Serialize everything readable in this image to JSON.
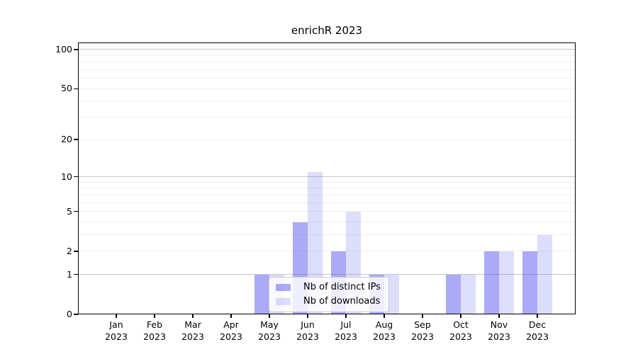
{
  "chart_data": {
    "type": "bar",
    "title": "enrichR 2023",
    "categories": [
      "Jan 2023",
      "Feb 2023",
      "Mar 2023",
      "Apr 2023",
      "May 2023",
      "Jun 2023",
      "Jul 2023",
      "Aug 2023",
      "Sep 2023",
      "Oct 2023",
      "Nov 2023",
      "Dec 2023"
    ],
    "series": [
      {
        "name": "Nb of distinct IPs",
        "color": "rgba(85,85,240,0.5)",
        "values": [
          0,
          0,
          0,
          0,
          1,
          4,
          2,
          1,
          0,
          1,
          2,
          2
        ]
      },
      {
        "name": "Nb of downloads",
        "color": "rgba(85,85,240,0.2)",
        "values": [
          0,
          0,
          0,
          0,
          1,
          11,
          5,
          1,
          0,
          1,
          2,
          3
        ]
      }
    ],
    "xlabel": "",
    "ylabel": "",
    "yscale": "log1p",
    "ylim": [
      0,
      113
    ],
    "y_ticks": [
      0,
      1,
      2,
      5,
      10,
      20,
      50,
      100
    ],
    "grid": true,
    "legend_position": "lower center"
  },
  "axes": {
    "y_major_gridlines": [
      1,
      10,
      100
    ],
    "y_minor_gridlines": [
      2,
      3,
      4,
      5,
      6,
      7,
      8,
      9,
      20,
      30,
      40,
      50,
      60,
      70,
      80,
      90
    ],
    "colors": {
      "major_grid": "#c6c6c6",
      "minor_grid": "#efefef",
      "spine": "#000000",
      "text": "#000000",
      "background": "#ffffff"
    }
  }
}
